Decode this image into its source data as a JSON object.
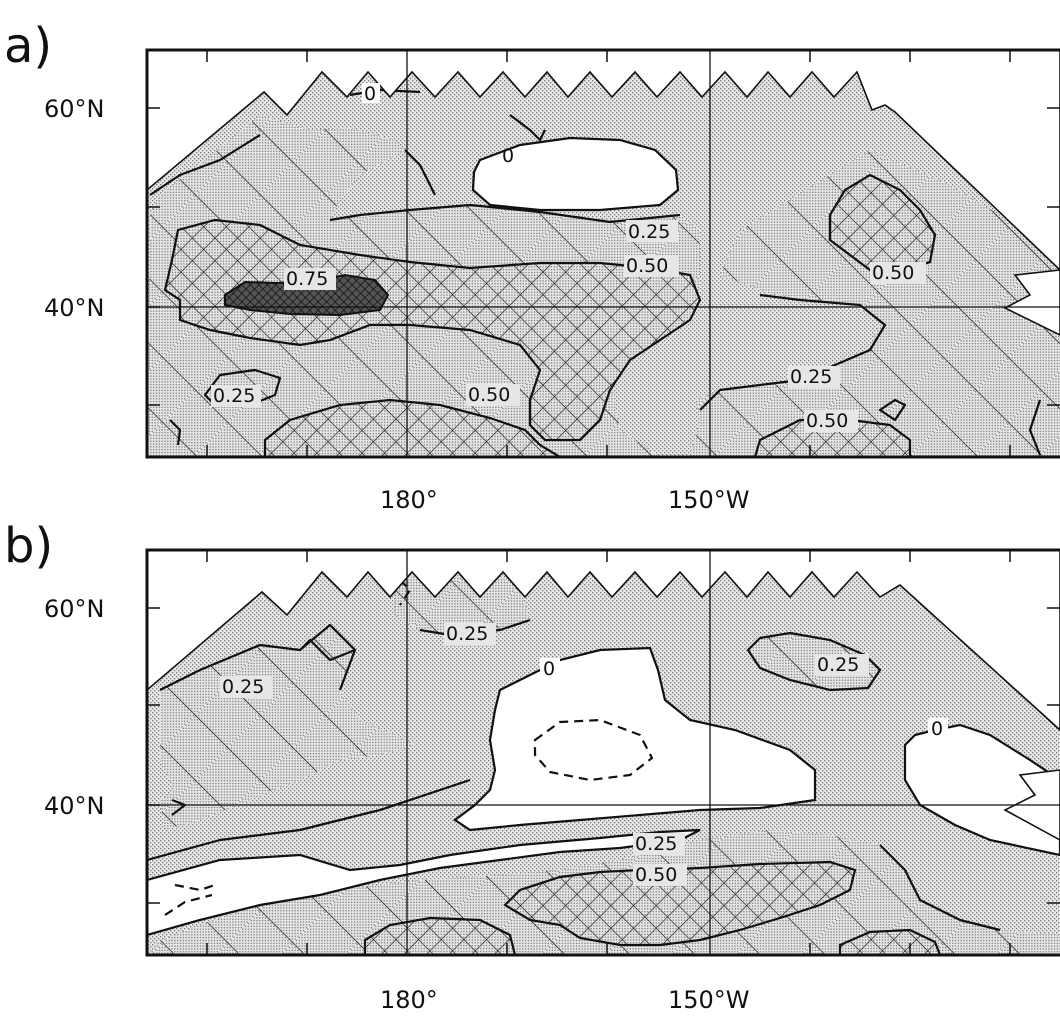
{
  "panels": [
    {
      "letter": "a)",
      "lat_labels": [
        "60°N",
        "40°N"
      ],
      "lon_labels": [
        "180°",
        "150°W"
      ],
      "contour_labels": [
        "0",
        "0",
        "0.25",
        "0.50",
        "0.75",
        "0.50",
        "0.25",
        "0.50",
        "0.25",
        "0.50"
      ]
    },
    {
      "letter": "b)",
      "lat_labels": [
        "60°N",
        "40°N"
      ],
      "lon_labels": [
        "180°",
        "150°W"
      ],
      "contour_labels": [
        "0.25",
        "0",
        "0.25",
        "0.25",
        "0",
        "0.25",
        "0.50"
      ]
    }
  ],
  "legend_colors": {
    "shading": "#bdbdbd",
    "lines": "#111111"
  }
}
